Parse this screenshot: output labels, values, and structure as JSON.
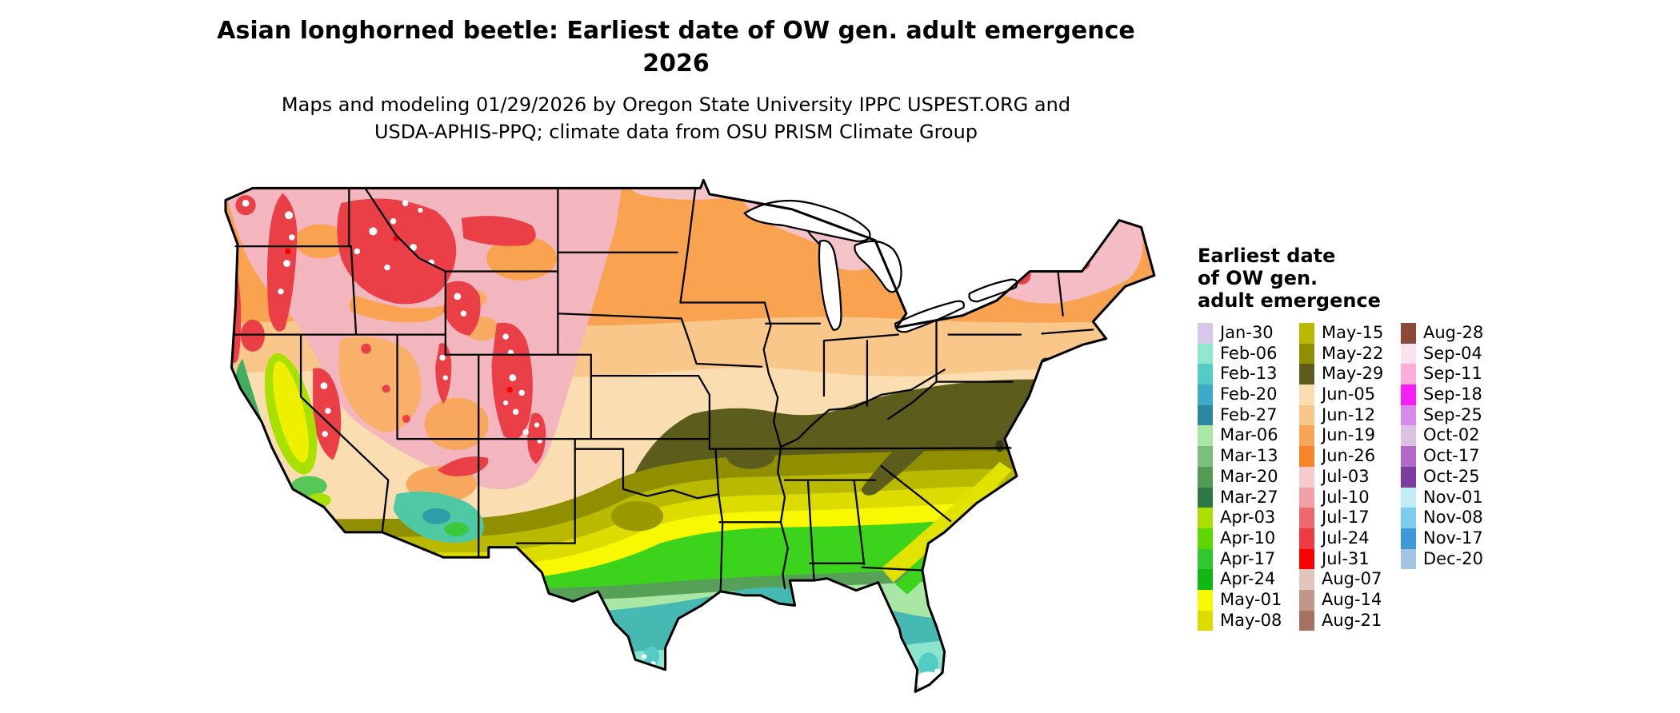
{
  "title": {
    "line1": "Asian longhorned beetle: Earliest date of OW gen. adult emergence",
    "line2": "2026"
  },
  "subtitle": {
    "line1": "Maps and modeling 01/29/2026 by Oregon State University IPPC USPEST.ORG and",
    "line2": "USDA-APHIS-PPQ; climate data from OSU PRISM Climate Group"
  },
  "legend": {
    "title": "Earliest date\nof OW gen.\nadult emergence",
    "columns": [
      {
        "entries": [
          {
            "label": "Jan-30",
            "color": "#d9c7e9"
          },
          {
            "label": "Feb-06",
            "color": "#90e6cf"
          },
          {
            "label": "Feb-13",
            "color": "#52ccc5"
          },
          {
            "label": "Feb-20",
            "color": "#3fa9c9"
          },
          {
            "label": "Feb-27",
            "color": "#2e87a0"
          },
          {
            "label": "Mar-06",
            "color": "#a9e8a4"
          },
          {
            "label": "Mar-13",
            "color": "#7cbe7c"
          },
          {
            "label": "Mar-20",
            "color": "#549b54"
          },
          {
            "label": "Mar-27",
            "color": "#2e7a47"
          },
          {
            "label": "Apr-03",
            "color": "#a9e000"
          },
          {
            "label": "Apr-10",
            "color": "#5cd800"
          },
          {
            "label": "Apr-17",
            "color": "#30c830"
          },
          {
            "label": "Apr-24",
            "color": "#12b812"
          },
          {
            "label": "May-01",
            "color": "#f8f800"
          },
          {
            "label": "May-08",
            "color": "#dcdc00"
          }
        ]
      },
      {
        "entries": [
          {
            "label": "May-15",
            "color": "#b9b900"
          },
          {
            "label": "May-22",
            "color": "#8f8f00"
          },
          {
            "label": "May-29",
            "color": "#5c5c1c"
          },
          {
            "label": "Jun-05",
            "color": "#faddb0"
          },
          {
            "label": "Jun-12",
            "color": "#fac78a"
          },
          {
            "label": "Jun-19",
            "color": "#f8a558"
          },
          {
            "label": "Jun-26",
            "color": "#f68428"
          },
          {
            "label": "Jul-03",
            "color": "#f6cbce"
          },
          {
            "label": "Jul-10",
            "color": "#f2a0a8"
          },
          {
            "label": "Jul-17",
            "color": "#ec6970"
          },
          {
            "label": "Jul-24",
            "color": "#ee3a44"
          },
          {
            "label": "Jul-31",
            "color": "#f80000"
          },
          {
            "label": "Aug-07",
            "color": "#e2c6be"
          },
          {
            "label": "Aug-14",
            "color": "#c29689"
          },
          {
            "label": "Aug-21",
            "color": "#a57262"
          }
        ]
      },
      {
        "entries": [
          {
            "label": "Aug-28",
            "color": "#8b4a38"
          },
          {
            "label": "Sep-04",
            "color": "#ffe2f1"
          },
          {
            "label": "Sep-11",
            "color": "#ffaed9"
          },
          {
            "label": "Sep-18",
            "color": "#f81ef8"
          },
          {
            "label": "Sep-25",
            "color": "#d88ae8"
          },
          {
            "label": "Oct-02",
            "color": "#dcc2e2"
          },
          {
            "label": "Oct-17",
            "color": "#b468c8"
          },
          {
            "label": "Oct-25",
            "color": "#7c3ca0"
          },
          {
            "label": "Nov-01",
            "color": "#c2ecf8"
          },
          {
            "label": "Nov-08",
            "color": "#7cccee"
          },
          {
            "label": "Nov-17",
            "color": "#3e98d8"
          },
          {
            "label": "Dec-20",
            "color": "#a4c4e4"
          }
        ]
      }
    ]
  }
}
